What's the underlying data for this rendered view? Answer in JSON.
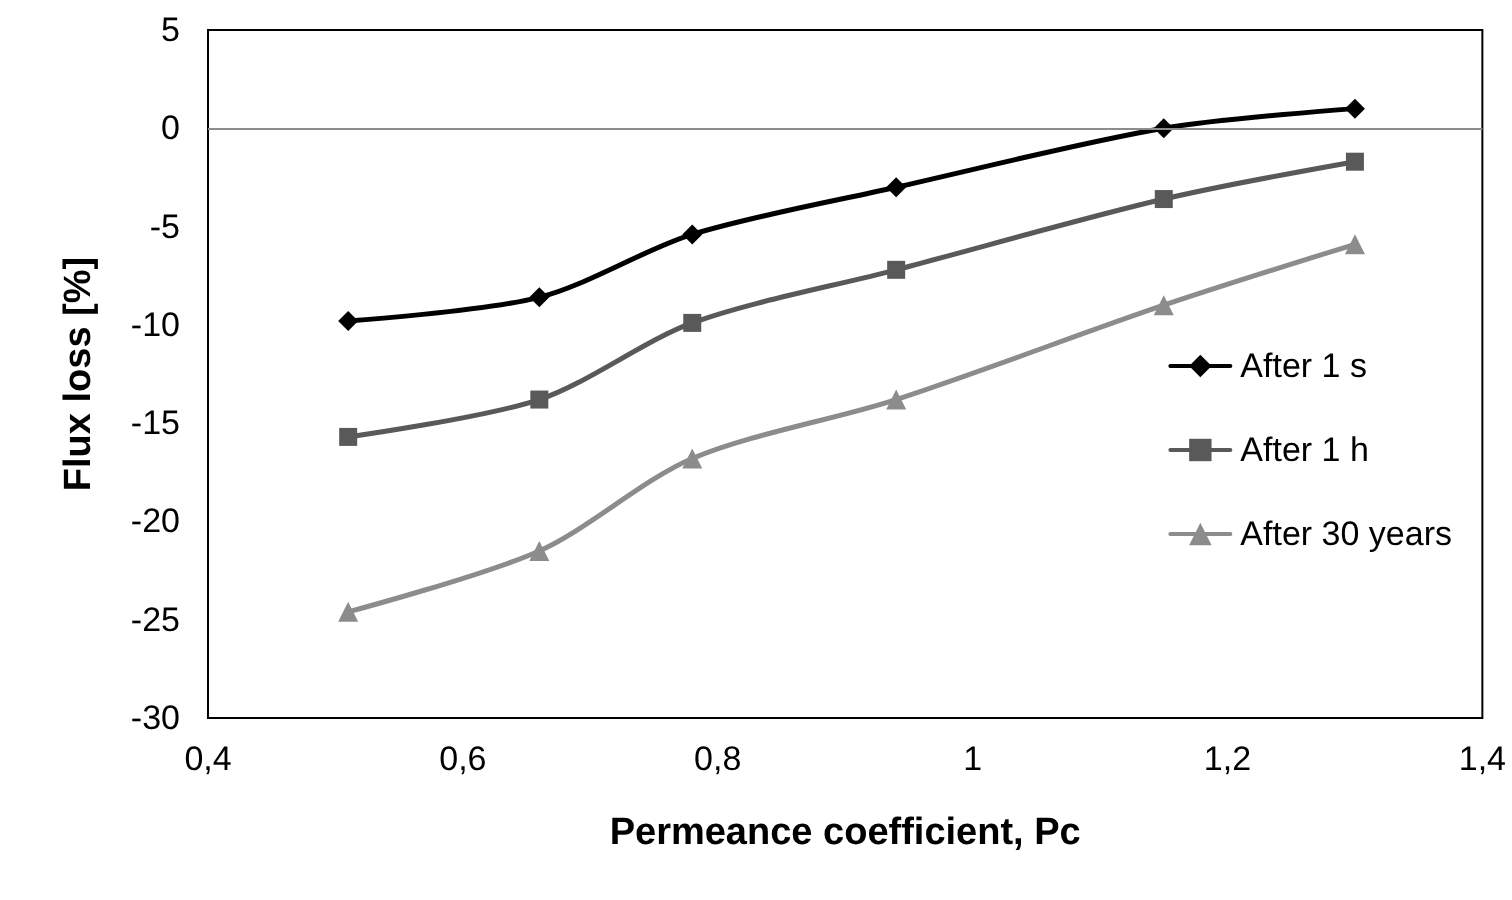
{
  "chart_data": {
    "type": "line",
    "xlabel": "Permeance coefficient, Pc",
    "ylabel": "Flux loss [%]",
    "x": [
      0.51,
      0.66,
      0.78,
      0.94,
      1.15,
      1.3
    ],
    "xlim": [
      0.4,
      1.4
    ],
    "xticks": [
      {
        "value": 0.4,
        "label": "0,4"
      },
      {
        "value": 0.6,
        "label": "0,6"
      },
      {
        "value": 0.8,
        "label": "0,8"
      },
      1,
      {
        "value": 1.2,
        "label": "1,2"
      },
      {
        "value": 1.4,
        "label": "1,4"
      }
    ],
    "ylim": [
      -30,
      5
    ],
    "yticks": [
      -30,
      -25,
      -20,
      -15,
      -10,
      -5,
      0,
      5
    ],
    "grid": false,
    "legend": "right",
    "line_style": "solid",
    "ref_lines": [
      {
        "axis": "y",
        "value": 0,
        "color": "#8c8c8c"
      }
    ],
    "series": [
      {
        "name": "After 1 s",
        "color": "#000000",
        "marker": "diamond",
        "values": [
          -9.8,
          -8.6,
          -5.4,
          -3.0,
          0,
          1.0
        ]
      },
      {
        "name": "After 1 h",
        "color": "#595959",
        "marker": "square",
        "values": [
          -15.7,
          -13.8,
          -9.9,
          -7.2,
          -3.6,
          -1.7
        ]
      },
      {
        "name": "After 30 years",
        "color": "#8c8c8c",
        "marker": "triangle",
        "values": [
          -24.6,
          -21.5,
          -16.8,
          -13.8,
          -9.0,
          -5.9
        ]
      }
    ]
  }
}
